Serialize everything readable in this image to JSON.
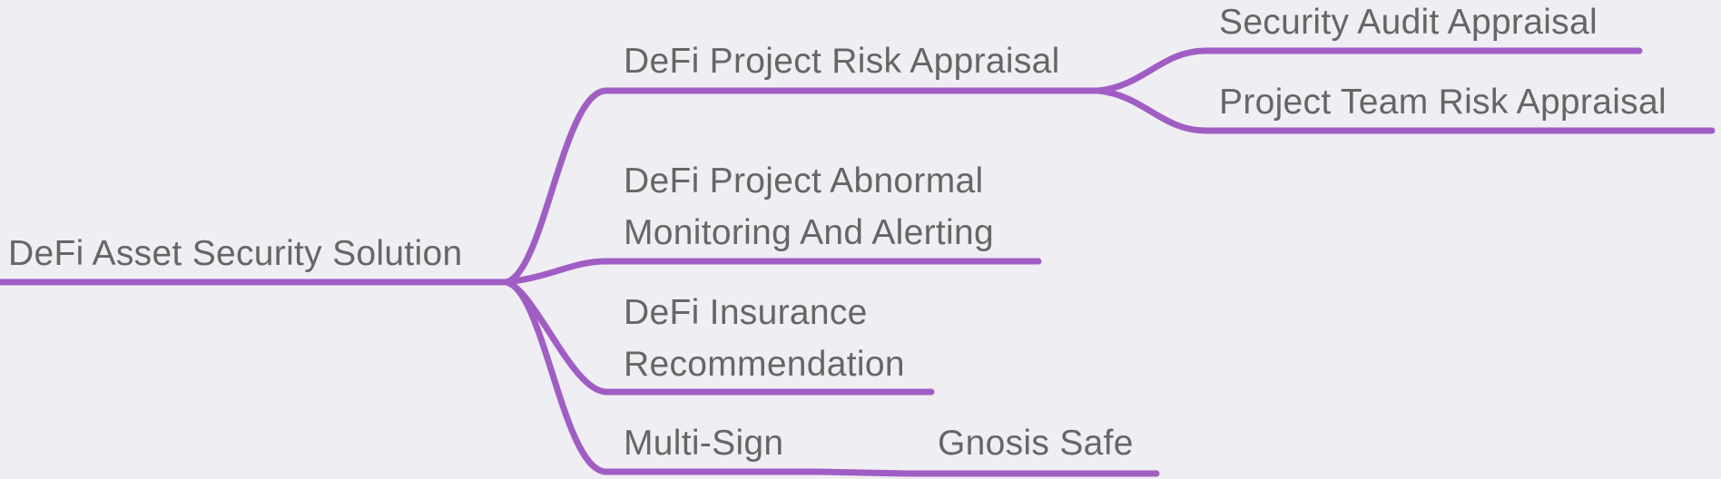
{
  "mindmap": {
    "accent_color": "#a05ec4",
    "text_color": "#666666",
    "background": "#efeef3",
    "root": {
      "label": "DeFi Asset Security Solution"
    },
    "branches": [
      {
        "lines": [
          "DeFi Project Risk Appraisal"
        ],
        "children": [
          {
            "lines": [
              "Security Audit Appraisal"
            ]
          },
          {
            "lines": [
              "Project Team Risk Appraisal"
            ]
          }
        ]
      },
      {
        "lines": [
          "DeFi Project Abnormal",
          "Monitoring And Alerting"
        ],
        "children": []
      },
      {
        "lines": [
          "DeFi Insurance",
          "Recommendation"
        ],
        "children": []
      },
      {
        "lines": [
          "Multi-Sign"
        ],
        "children": [
          {
            "lines": [
              "Gnosis Safe"
            ]
          }
        ]
      }
    ]
  }
}
